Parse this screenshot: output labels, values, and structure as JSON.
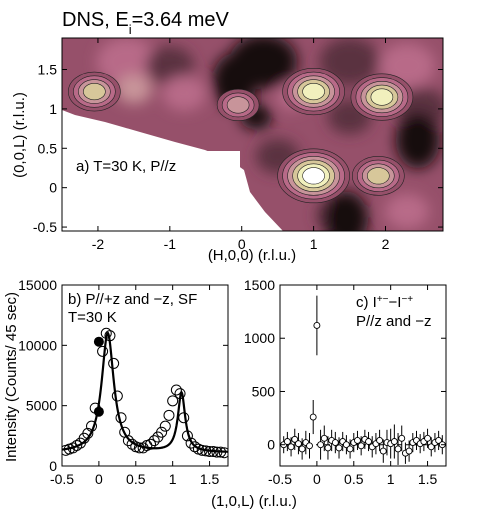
{
  "figure_title": "DNS, E",
  "figure_title_sub": "i",
  "figure_title_rest": "=3.64 meV",
  "chart_data": [
    {
      "panel": "a",
      "type": "heatmap",
      "annotation": "a) T=30 K, P//z",
      "xlabel": "(H,0,0) (r.l.u.)",
      "ylabel": "(0,0,L) (r.l.u.)",
      "xlim": [
        -2.5,
        2.8
      ],
      "ylim": [
        -0.55,
        1.9
      ],
      "xticks": [
        "-2",
        "-1",
        "0",
        "1",
        "2"
      ],
      "xtick_values": [
        -2,
        -1,
        0,
        1,
        2
      ],
      "yticks": [
        "-0.5",
        "0",
        "0.5",
        "1",
        "1.5"
      ],
      "ytick_values": [
        -0.5,
        0,
        0.5,
        1,
        1.5
      ],
      "colors": {
        "level0": "#140c0e",
        "level1": "#5a3340",
        "level2": "#96506a",
        "level3": "#b86a88",
        "level4": "#c8949a",
        "level5": "#d7c79a",
        "level6": "#f1f0bd",
        "peak": "#ffffff"
      },
      "peaks": [
        {
          "h": 1.0,
          "l": 0.15,
          "level": 7
        },
        {
          "h": 1.0,
          "l": 1.22,
          "level": 6
        },
        {
          "h": 1.95,
          "l": 1.15,
          "level": 6
        },
        {
          "h": 1.9,
          "l": 0.15,
          "level": 5
        },
        {
          "h": -2.05,
          "l": 1.22,
          "level": 5
        },
        {
          "h": -0.05,
          "l": 1.05,
          "level": 4
        }
      ],
      "dark_regions": [
        {
          "h": -0.1,
          "l": 1.35
        },
        {
          "h": 2.45,
          "l": 0.6
        },
        {
          "h": 1.45,
          "l": -0.4
        }
      ]
    },
    {
      "panel": "b",
      "type": "scatter",
      "annotation_lines": [
        "b) P//+z and −z, SF",
        "T=30 K"
      ],
      "ylabel": "Intensity (Counts/ 45 sec)",
      "xlim": [
        -0.5,
        1.75
      ],
      "ylim": [
        0,
        15000
      ],
      "xticks": [
        "-0.5",
        "0",
        "0.5",
        "1",
        "1.5"
      ],
      "xtick_values": [
        -0.5,
        0,
        0.5,
        1,
        1.5
      ],
      "yticks": [
        "0",
        "5000",
        "10000",
        "15000"
      ],
      "ytick_values": [
        0,
        5000,
        10000,
        15000
      ],
      "series": [
        {
          "marker": "open-circle",
          "x": [
            -0.45,
            -0.4,
            -0.35,
            -0.3,
            -0.25,
            -0.2,
            -0.15,
            -0.1,
            -0.05,
            0.05,
            0.1,
            0.15,
            0.2,
            0.25,
            0.3,
            0.35,
            0.4,
            0.45,
            0.5,
            0.55,
            0.6,
            0.65,
            0.7,
            0.75,
            0.8,
            0.85,
            0.9,
            0.95,
            1.0,
            1.05,
            1.1,
            1.15,
            1.2,
            1.25,
            1.3,
            1.35,
            1.4,
            1.45,
            1.5,
            1.55,
            1.6,
            1.65,
            1.7
          ],
          "y": [
            1300,
            1400,
            1500,
            1700,
            1900,
            2300,
            2700,
            3300,
            4800,
            9500,
            11000,
            10800,
            8500,
            5800,
            4000,
            2800,
            2100,
            1800,
            1600,
            1500,
            1500,
            1700,
            1800,
            2100,
            2400,
            2800,
            3300,
            4200,
            5400,
            6300,
            6000,
            4000,
            2500,
            1900,
            1600,
            1400,
            1300,
            1250,
            1200,
            1200,
            1150,
            1150,
            1100
          ]
        },
        {
          "marker": "filled-circle",
          "x": [
            0.0,
            0.0
          ],
          "y": [
            10300,
            4500
          ]
        }
      ],
      "fit": {
        "type": "lorentzian-sum",
        "background": 1100,
        "peaks": [
          {
            "center": 0.12,
            "amplitude": 9900,
            "hwhm": 0.1
          },
          {
            "center": 1.12,
            "amplitude": 4900,
            "hwhm": 0.06
          }
        ]
      }
    },
    {
      "panel": "c",
      "type": "scatter",
      "annotation_line1_base": "c) I",
      "annotation_line1_sup1": "+−",
      "annotation_line1_mid": "−I",
      "annotation_line1_sup2": "−+",
      "annotation_line2": "P//z and −z",
      "xlim": [
        -0.5,
        1.75
      ],
      "ylim": [
        -200,
        1500
      ],
      "xticks": [
        "-0.5",
        "0",
        "0.5",
        "1",
        "1.5"
      ],
      "xtick_values": [
        -0.5,
        0,
        0.5,
        1,
        1.5
      ],
      "yticks": [
        "0",
        "500",
        "1000",
        "1500"
      ],
      "ytick_values": [
        0,
        500,
        1000,
        1500
      ],
      "zero_line": true,
      "series": [
        {
          "marker": "open-circle-errorbar",
          "x": [
            -0.45,
            -0.4,
            -0.35,
            -0.3,
            -0.25,
            -0.2,
            -0.15,
            -0.1,
            -0.05,
            0.0,
            0.05,
            0.1,
            0.15,
            0.2,
            0.25,
            0.3,
            0.35,
            0.4,
            0.45,
            0.5,
            0.55,
            0.6,
            0.65,
            0.7,
            0.75,
            0.8,
            0.85,
            0.9,
            0.95,
            1.0,
            1.05,
            1.1,
            1.15,
            1.2,
            1.25,
            1.3,
            1.35,
            1.4,
            1.45,
            1.5,
            1.55,
            1.6,
            1.65,
            1.7
          ],
          "y": [
            0,
            30,
            -20,
            50,
            10,
            -40,
            20,
            -10,
            260,
            1120,
            0,
            60,
            -30,
            40,
            20,
            -30,
            30,
            0,
            -40,
            20,
            40,
            -10,
            50,
            30,
            -20,
            10,
            40,
            -60,
            20,
            10,
            30,
            -40,
            60,
            -80,
            -60,
            20,
            40,
            10,
            30,
            60,
            -20,
            20,
            40,
            0
          ],
          "err": [
            80,
            90,
            90,
            100,
            100,
            100,
            110,
            120,
            160,
            280,
            140,
            120,
            110,
            100,
            100,
            100,
            90,
            90,
            90,
            90,
            90,
            90,
            90,
            90,
            100,
            100,
            100,
            110,
            120,
            140,
            160,
            150,
            120,
            100,
            100,
            90,
            90,
            90,
            90,
            90,
            90,
            90,
            90,
            90
          ]
        }
      ]
    }
  ],
  "shared_xlabel": "(1,0,L) (r.l.u.)"
}
